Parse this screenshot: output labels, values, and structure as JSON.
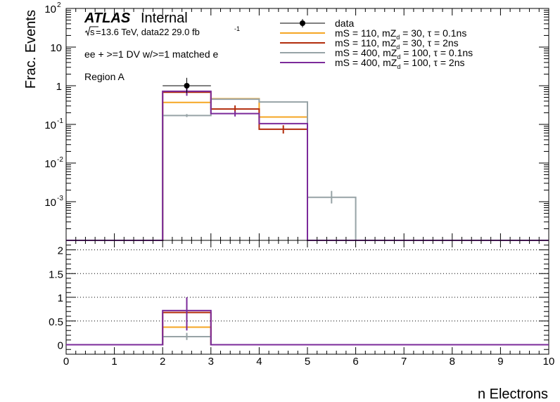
{
  "chart_data": {
    "type": "histogram",
    "annotations": {
      "experiment": "ATLAS",
      "status": "Internal",
      "sqrt_s": "s",
      "energy_text": "=13.6 TeV, data22 29.0 fb",
      "lumi_exp": "-1",
      "selection": "ee + >=1 DV w/>=1 matched e",
      "region": "Region A"
    },
    "xlabel": "n Electrons",
    "ylabel": "Frac. Events",
    "xlim": [
      0,
      10
    ],
    "x_ticks": [
      0,
      1,
      2,
      3,
      4,
      5,
      6,
      7,
      8,
      9,
      10
    ],
    "upper": {
      "yscale": "log",
      "ylim": [
        0.0001,
        100
      ],
      "y_tick_values": [
        0.001,
        0.01,
        0.1,
        1,
        10,
        100
      ],
      "y_tick_labels": [
        {
          "base": "10",
          "exp": "-3"
        },
        {
          "base": "10",
          "exp": "-2"
        },
        {
          "base": "10",
          "exp": "-1"
        },
        {
          "base": "1",
          "exp": ""
        },
        {
          "base": "10",
          "exp": ""
        },
        {
          "base": "10",
          "exp": "2"
        }
      ],
      "legend_position": "top-right",
      "data": {
        "name": "data",
        "color": "#000000",
        "points": [
          {
            "x": 2.5,
            "y": 1.0,
            "err_lo": 0.65,
            "err_hi": 1.6
          }
        ]
      },
      "series": [
        {
          "name": "mS = 110, mZ",
          "name_sub": "d",
          "name_rest": " = 30, τ = 0.1ns",
          "color": "#f5a623",
          "bins": [
            [
              2,
              3,
              0.37
            ],
            [
              3,
              4,
              0.46
            ],
            [
              4,
              5,
              0.155
            ]
          ],
          "errors": []
        },
        {
          "name": "mS = 110, mZ",
          "name_sub": "d",
          "name_rest": " = 30, τ = 2ns",
          "color": "#b22d0c",
          "bins": [
            [
              2,
              3,
              0.68
            ],
            [
              3,
              4,
              0.25
            ],
            [
              4,
              5,
              0.075
            ]
          ],
          "errors": [
            {
              "x": 3.5,
              "lo": 0.2,
              "hi": 0.31
            },
            {
              "x": 4.5,
              "lo": 0.058,
              "hi": 0.095
            }
          ]
        },
        {
          "name": "mS = 400, mZ",
          "name_sub": "d",
          "name_rest": " = 100, τ = 0.1ns",
          "color": "#97a3a6",
          "bins": [
            [
              2,
              3,
              0.17
            ],
            [
              3,
              4,
              0.45
            ],
            [
              4,
              5,
              0.38
            ],
            [
              5,
              6,
              0.0013
            ]
          ],
          "errors": [
            {
              "x": 2.5,
              "lo": 0.155,
              "hi": 0.185
            },
            {
              "x": 5.5,
              "lo": 0.0009,
              "hi": 0.0019
            }
          ]
        },
        {
          "name": "mS = 400, mZ",
          "name_sub": "d",
          "name_rest": " = 100, τ = 2ns",
          "color": "#7b2a9a",
          "bins": [
            [
              2,
              3,
              0.72
            ],
            [
              3,
              4,
              0.19
            ],
            [
              4,
              5,
              0.105
            ]
          ],
          "errors": [
            {
              "x": 2.5,
              "lo": 0.55,
              "hi": 0.9
            },
            {
              "x": 3.5,
              "lo": 0.16,
              "hi": 0.22
            }
          ]
        }
      ]
    },
    "lower": {
      "ylim": [
        -0.2,
        2.2
      ],
      "y_ticks": [
        0,
        0.5,
        1,
        1.5,
        2
      ],
      "y_tick_labels": [
        "0",
        "0.5",
        "1",
        "1.5",
        "2"
      ],
      "grid": true,
      "series": [
        {
          "color": "#f5a623",
          "bins": [
            [
              2,
              3,
              0.37
            ]
          ],
          "errors": []
        },
        {
          "color": "#b22d0c",
          "bins": [
            [
              2,
              3,
              0.68
            ]
          ],
          "errors": []
        },
        {
          "color": "#97a3a6",
          "bins": [
            [
              2,
              3,
              0.17
            ]
          ],
          "errors": [
            {
              "x": 2.5,
              "lo": 0.1,
              "hi": 0.25
            }
          ]
        },
        {
          "color": "#7b2a9a",
          "bins": [
            [
              2,
              3,
              0.72
            ]
          ],
          "errors": [
            {
              "x": 2.5,
              "lo": 0.3,
              "hi": 1.0
            }
          ]
        }
      ]
    }
  }
}
